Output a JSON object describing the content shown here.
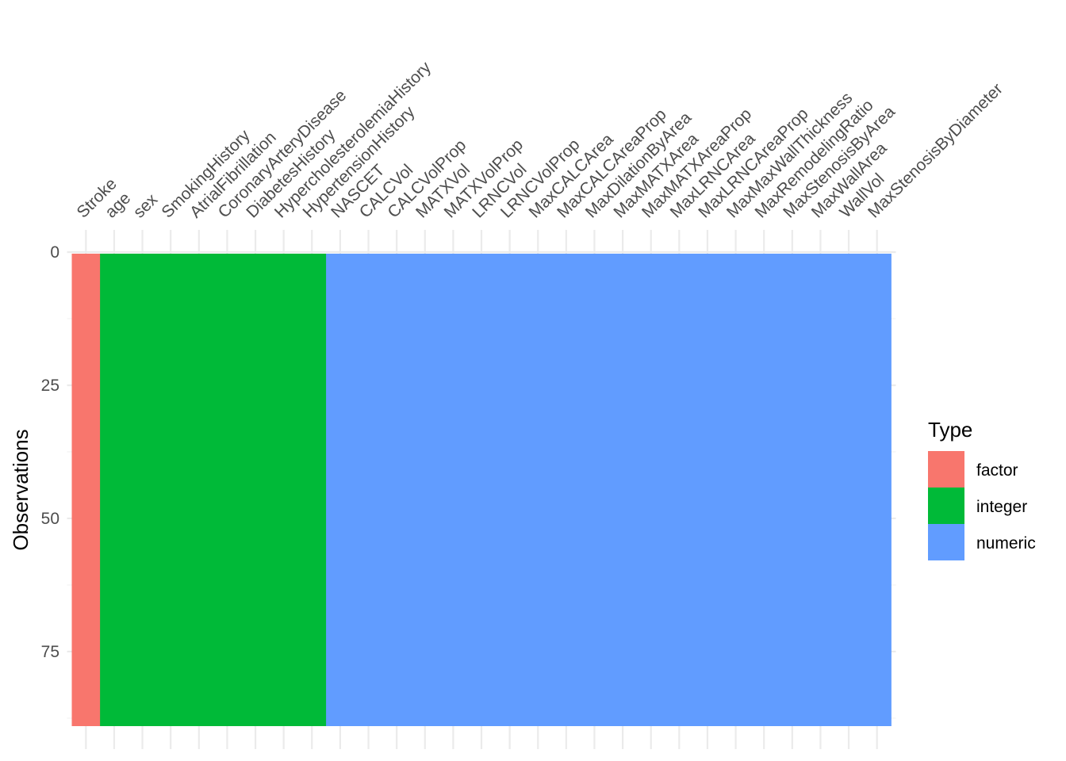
{
  "chart_data": {
    "type": "heatmap",
    "title": "",
    "xlabel": "",
    "ylabel": "Observations",
    "x_position": "top",
    "grid": true,
    "variables": [
      "Stroke",
      "age",
      "sex",
      "SmokingHistory",
      "AtrialFibrillation",
      "CoronaryArteryDisease",
      "DiabetesHistory",
      "HypercholesterolemiaHistory",
      "HypertensionHistory",
      "NASCET",
      "CALCVol",
      "CALCVolProp",
      "MATXVol",
      "MATXVolProp",
      "LRNCVol",
      "LRNCVolProp",
      "MaxCALCArea",
      "MaxCALCAreaProp",
      "MaxDilationByArea",
      "MaxMATXArea",
      "MaxMATXAreaProp",
      "MaxLRNCArea",
      "MaxLRNCAreaProp",
      "MaxMaxWallThickness",
      "MaxRemodelingRatio",
      "MaxStenosisByArea",
      "MaxWallArea",
      "WallVol",
      "MaxStenosisByDiameter"
    ],
    "types": [
      "factor",
      "integer",
      "integer",
      "integer",
      "integer",
      "integer",
      "integer",
      "integer",
      "integer",
      "numeric",
      "numeric",
      "numeric",
      "numeric",
      "numeric",
      "numeric",
      "numeric",
      "numeric",
      "numeric",
      "numeric",
      "numeric",
      "numeric",
      "numeric",
      "numeric",
      "numeric",
      "numeric",
      "numeric",
      "numeric",
      "numeric",
      "numeric"
    ],
    "n_observations": 89,
    "y_ticks": [
      0,
      25,
      50,
      75
    ],
    "ylim": [
      0,
      89
    ],
    "legend": {
      "title": "Type",
      "placement": "right",
      "entries": [
        {
          "label": "factor",
          "color": "#F8766D"
        },
        {
          "label": "integer",
          "color": "#00BA38"
        },
        {
          "label": "numeric",
          "color": "#619CFF"
        }
      ]
    }
  }
}
